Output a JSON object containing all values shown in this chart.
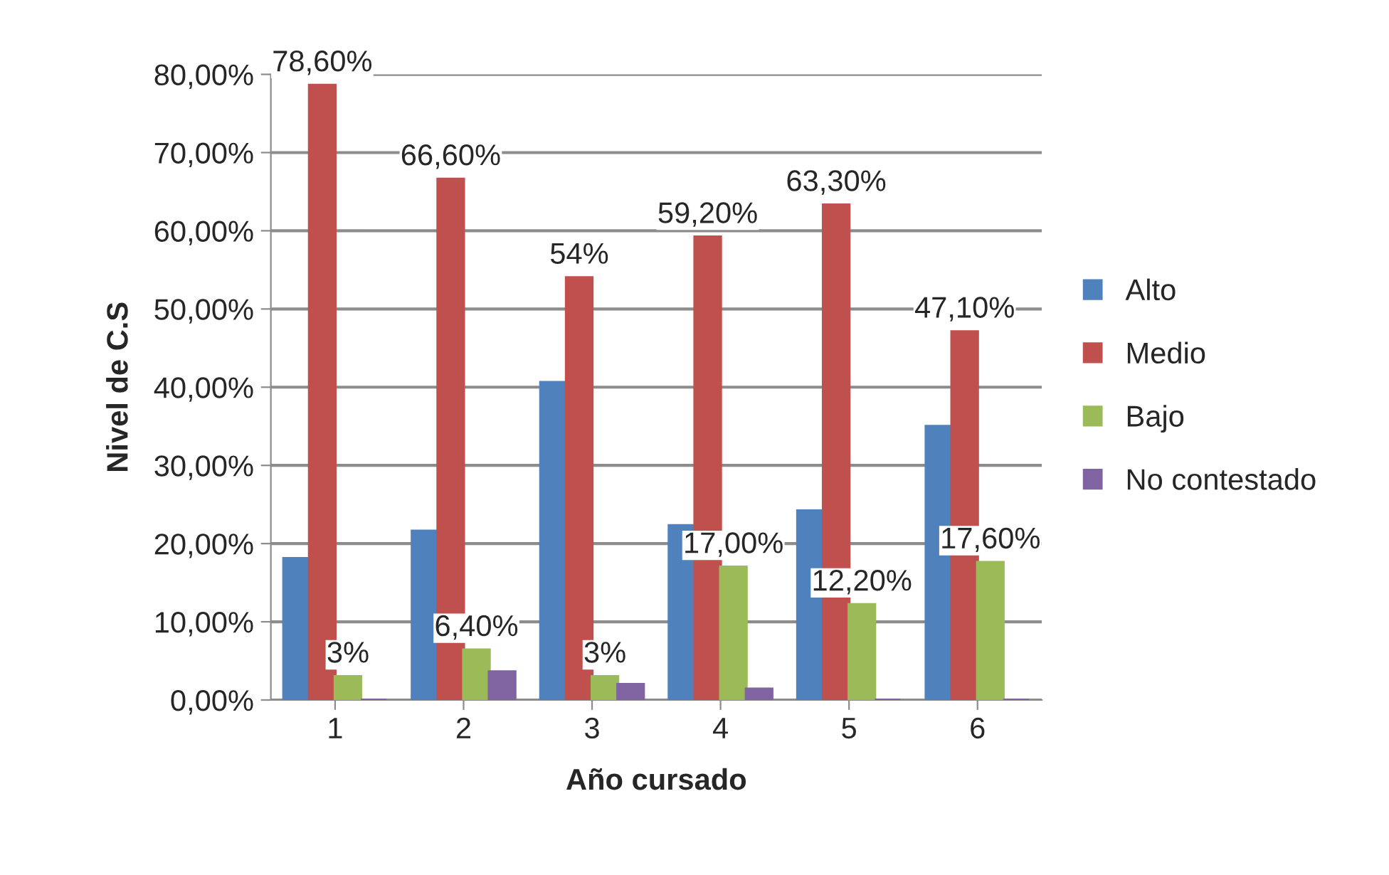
{
  "chart_data": {
    "type": "bar",
    "xlabel": "Año cursado",
    "ylabel": "Nivel de C.S",
    "categories": [
      "1",
      "2",
      "3",
      "4",
      "5",
      "6"
    ],
    "series": [
      {
        "name": "Alto",
        "color": "#4f81bd",
        "values": [
          18.1,
          21.6,
          40.6,
          22.3,
          24.2,
          35.0
        ]
      },
      {
        "name": "Medio",
        "color": "#c0504d",
        "values": [
          78.6,
          66.6,
          54,
          59.2,
          63.3,
          47.1
        ],
        "value_labels": [
          "78,60%",
          "66,60%",
          "54%",
          "59,20%",
          "63,30%",
          "47,10%"
        ]
      },
      {
        "name": "Bajo",
        "color": "#9bbb59",
        "values": [
          3,
          6.4,
          3,
          17,
          12.2,
          17.6
        ],
        "value_labels": [
          "3%",
          "6,40%",
          "3%",
          "17,00%",
          "12,20%",
          "17,60%"
        ]
      },
      {
        "name": "No contestado",
        "color": "#8064a2",
        "values": [
          0,
          3.6,
          2.0,
          1.4,
          0,
          0
        ]
      }
    ],
    "ylim": [
      0,
      80
    ],
    "yticks": [
      {
        "value": 0,
        "label": "0,00%"
      },
      {
        "value": 10,
        "label": "10,00%"
      },
      {
        "value": 20,
        "label": "20,00%"
      },
      {
        "value": 30,
        "label": "30,00%"
      },
      {
        "value": 40,
        "label": "40,00%"
      },
      {
        "value": 50,
        "label": "50,00%"
      },
      {
        "value": 60,
        "label": "60,00%"
      },
      {
        "value": 70,
        "label": "70,00%"
      },
      {
        "value": 80,
        "label": "80,00%"
      }
    ],
    "grid": "y",
    "legend": "right"
  }
}
